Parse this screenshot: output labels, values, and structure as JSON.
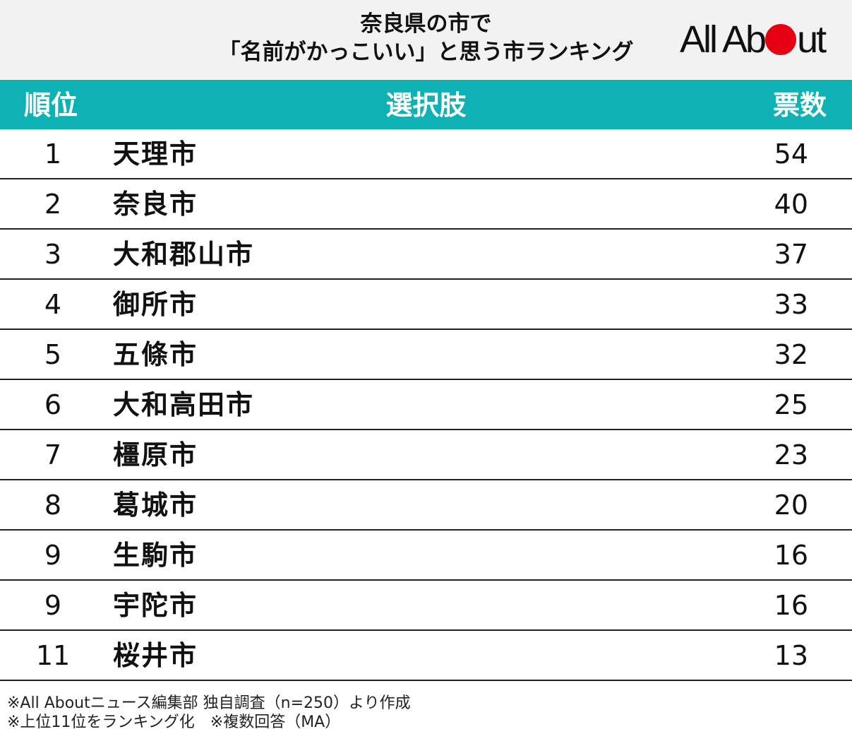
{
  "header": {
    "title_line1": "奈良県の市で",
    "title_line2": "「名前がかっこいい」と思う市ランキング",
    "logo": {
      "before": "All Ab",
      "after": "ut",
      "dot_color": "#e60012"
    }
  },
  "table": {
    "columns": {
      "rank": "順位",
      "choice": "選択肢",
      "votes": "票数"
    },
    "header_color": "#0fb2b4",
    "rows": [
      {
        "rank": "1",
        "name": "天理市",
        "votes": "54"
      },
      {
        "rank": "2",
        "name": "奈良市",
        "votes": "40"
      },
      {
        "rank": "3",
        "name": "大和郡山市",
        "votes": "37"
      },
      {
        "rank": "4",
        "name": "御所市",
        "votes": "33"
      },
      {
        "rank": "5",
        "name": "五條市",
        "votes": "32"
      },
      {
        "rank": "6",
        "name": "大和高田市",
        "votes": "25"
      },
      {
        "rank": "7",
        "name": "橿原市",
        "votes": "23"
      },
      {
        "rank": "8",
        "name": "葛城市",
        "votes": "20"
      },
      {
        "rank": "9",
        "name": "生駒市",
        "votes": "16"
      },
      {
        "rank": "9",
        "name": "宇陀市",
        "votes": "16"
      },
      {
        "rank": "11",
        "name": "桜井市",
        "votes": "13"
      }
    ]
  },
  "notes": {
    "line1": "※All Aboutニュース編集部 独自調査（n=250）より作成",
    "line2": "※上位11位をランキング化　※複数回答（MA）"
  }
}
